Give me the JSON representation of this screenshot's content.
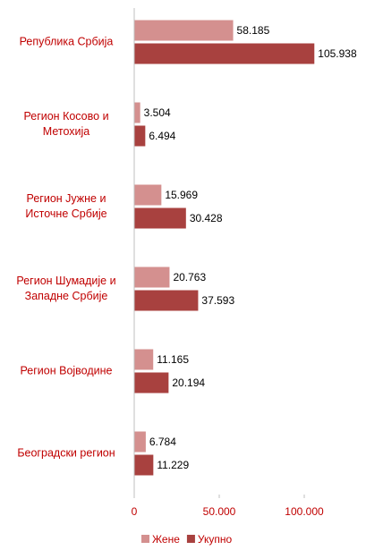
{
  "chart_data": {
    "type": "bar",
    "orientation": "horizontal",
    "categories": [
      "Република Србија",
      "Регион Косово и Метохија",
      "Регион Јужне и Источне Србије",
      "Регион Шумадије и Западне Србије",
      "Регион Војводине",
      "Београдски регион"
    ],
    "series": [
      {
        "name": "Жене",
        "color": "#d4908f",
        "values": [
          58185,
          3504,
          15969,
          20763,
          11165,
          6784
        ],
        "value_labels": [
          "58.185",
          "3.504",
          "15.969",
          "20.763",
          "11.165",
          "6.784"
        ]
      },
      {
        "name": "Укупно",
        "color": "#a8413f",
        "values": [
          105938,
          6494,
          30428,
          37593,
          20194,
          11229
        ],
        "value_labels": [
          "105.938",
          "6.494",
          "30.428",
          "37.593",
          "20.194",
          "11.229"
        ]
      }
    ],
    "xlim": [
      0,
      140000
    ],
    "xticks": [
      0,
      {
        "value": 50000,
        "label": "50.000"
      },
      {
        "value": 100000,
        "label": "100.000"
      }
    ],
    "legend": "bottom"
  }
}
